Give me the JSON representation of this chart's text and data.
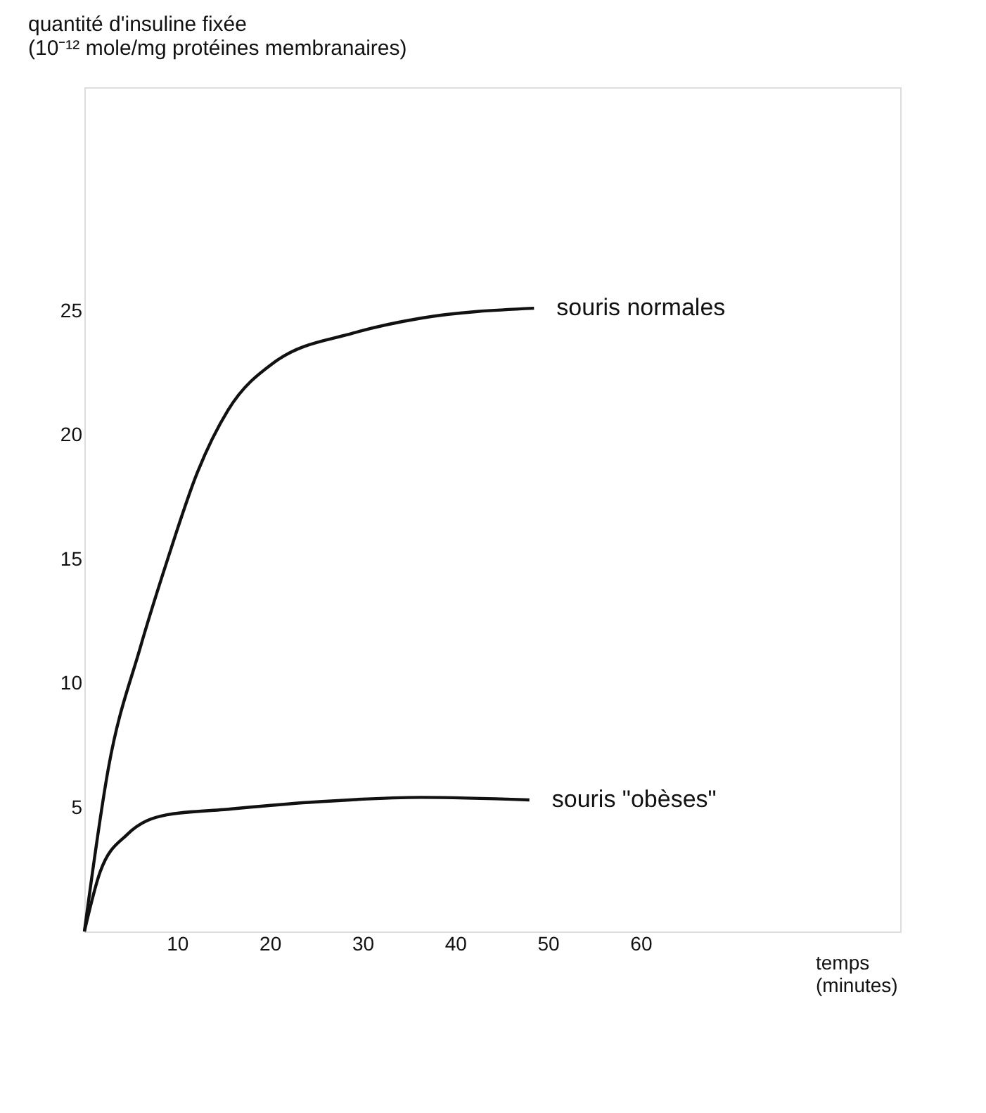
{
  "chart_data": {
    "type": "line",
    "ylabel": "quantité d'insuline fixée\n(10⁻¹² mole/mg protéines membranaires)",
    "xlabel": "temps (minutes)",
    "xlim": [
      0,
      88
    ],
    "xticks": [
      10,
      20,
      30,
      40,
      50,
      60
    ],
    "ylim": [
      0,
      34
    ],
    "yticks": [
      5,
      10,
      15,
      20,
      25
    ],
    "grid": false,
    "marker": "none",
    "line_style": "solid",
    "series": [
      {
        "name": "souris normales",
        "color": "#111111",
        "x": [
          0,
          2.6,
          6.0,
          8.9,
          12.2,
          15.5,
          20.4,
          29,
          36.3,
          48.5
        ],
        "values": [
          0,
          6.6,
          11.4,
          14.9,
          18.5,
          21.0,
          22.9,
          24.1,
          24.7,
          25.1
        ]
      },
      {
        "name": "souris \"obèses\"",
        "color": "#111111",
        "x": [
          0,
          1.7,
          4.6,
          8.9,
          14.7,
          24.2,
          36.3,
          48
        ],
        "values": [
          0,
          2.4,
          3.9,
          4.7,
          4.9,
          5.2,
          5.4,
          5.3
        ]
      }
    ]
  }
}
